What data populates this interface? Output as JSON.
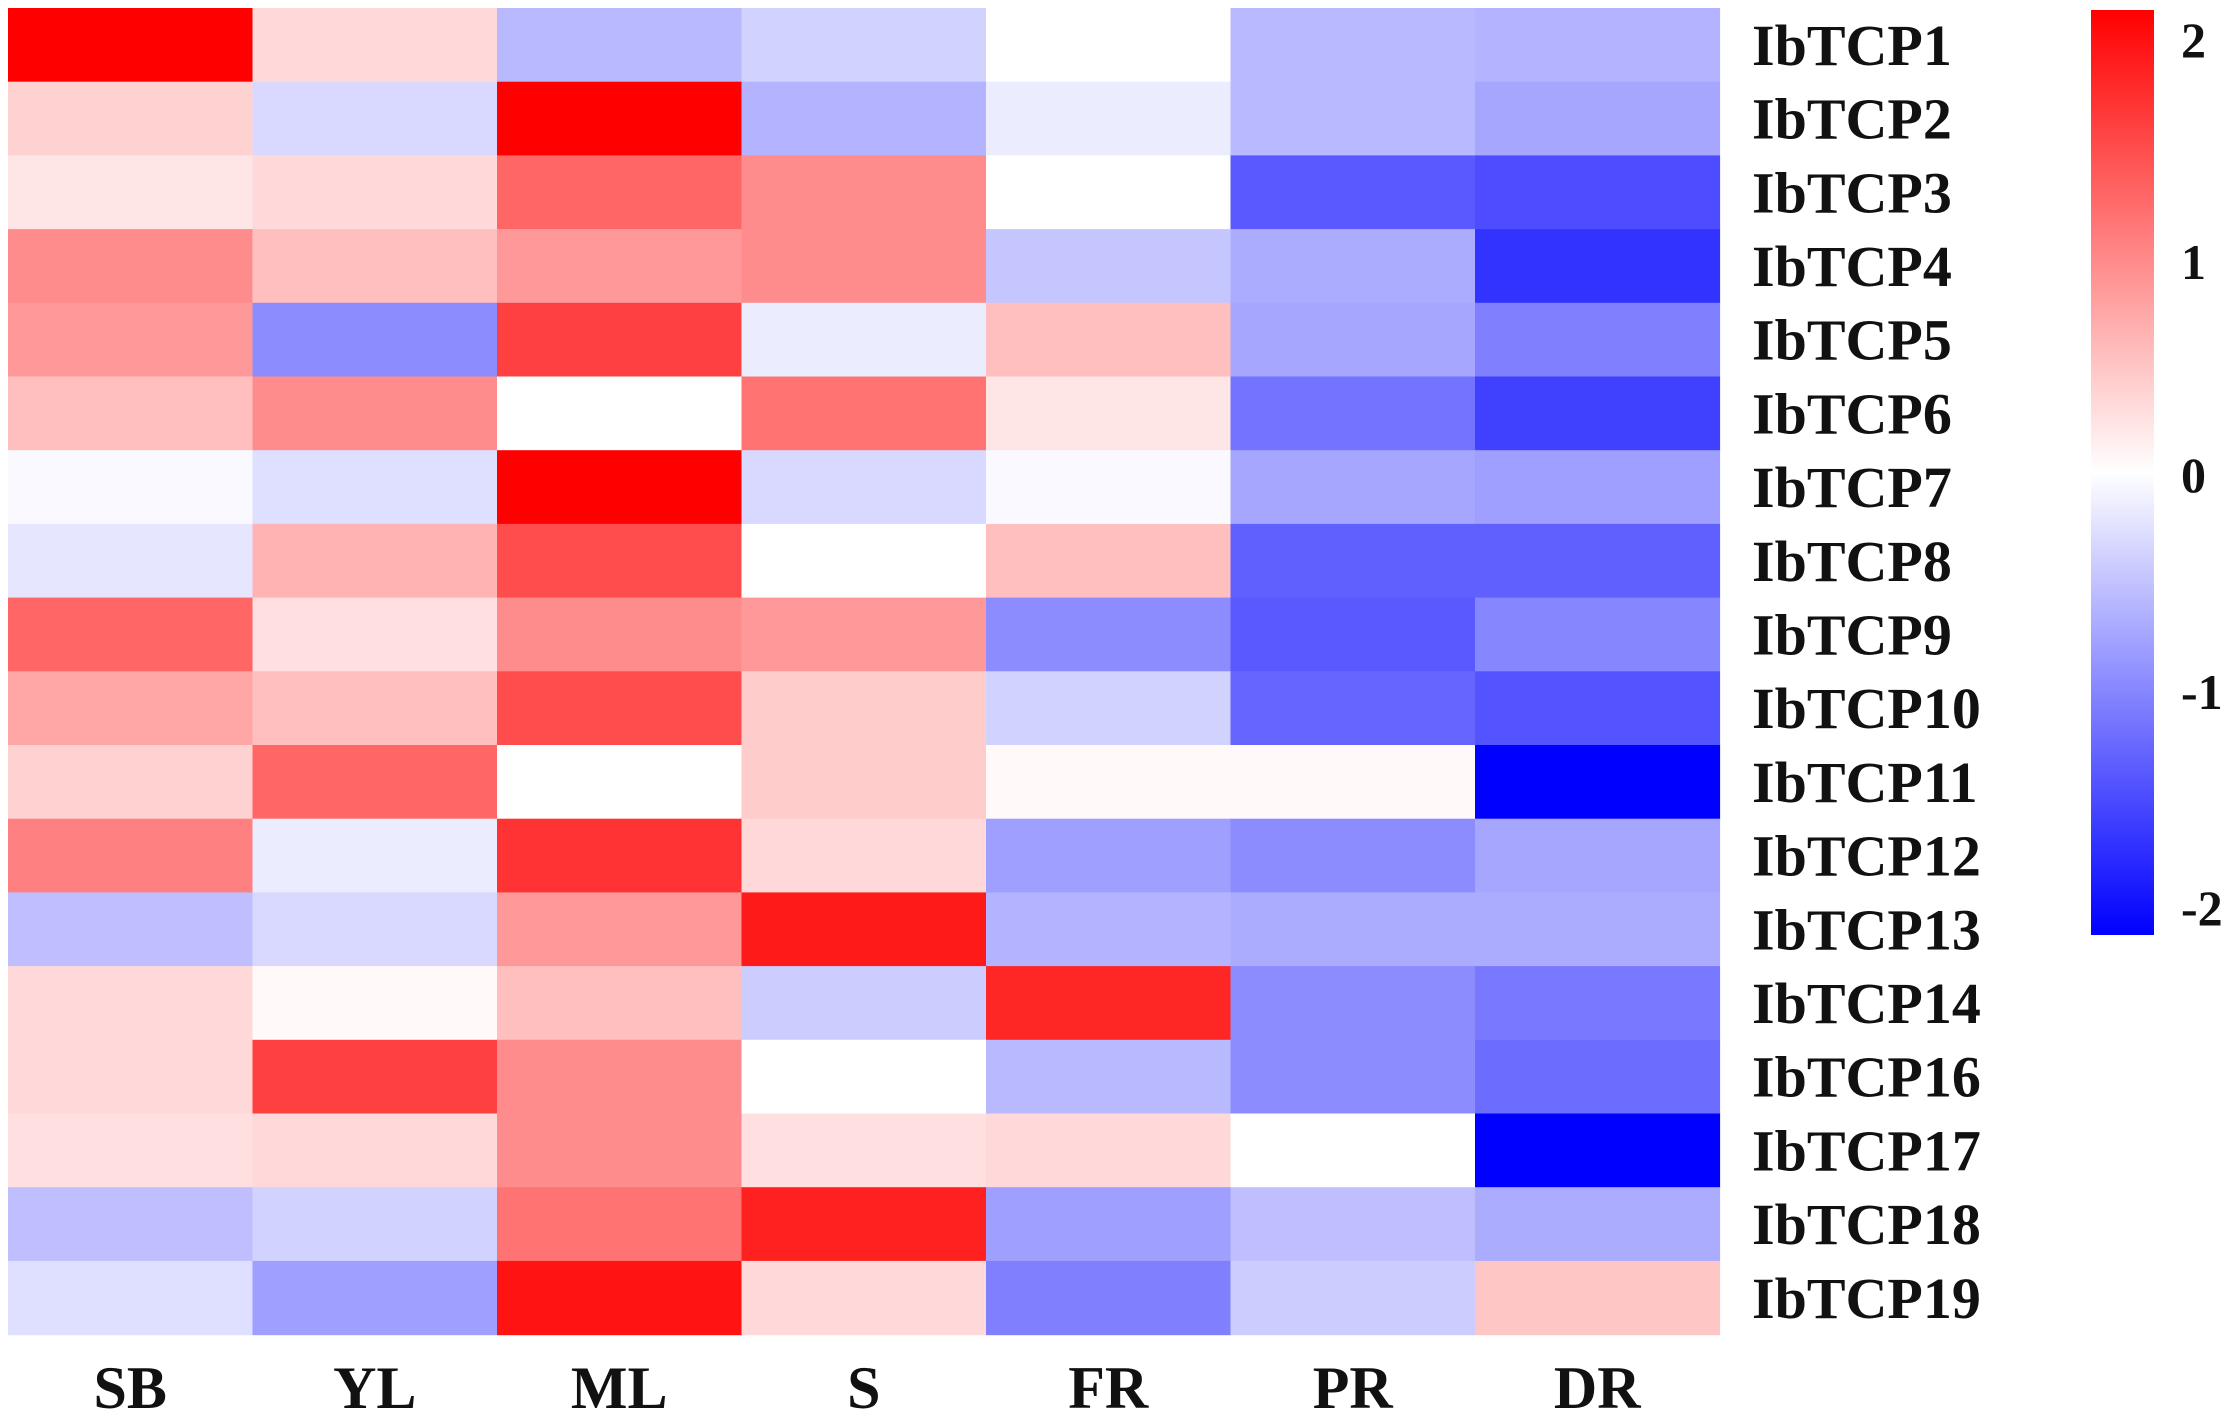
{
  "chart_data": {
    "type": "heatmap",
    "title": "",
    "xlabel": "",
    "ylabel": "",
    "columns": [
      "SB",
      "YL",
      "ML",
      "S",
      "FR",
      "PR",
      "DR"
    ],
    "rows": [
      "IbTCP1",
      "IbTCP2",
      "IbTCP3",
      "IbTCP4",
      "IbTCP5",
      "IbTCP6",
      "IbTCP7",
      "IbTCP8",
      "IbTCP9",
      "IbTCP10",
      "IbTCP11",
      "IbTCP12",
      "IbTCP13",
      "IbTCP14",
      "IbTCP16",
      "IbTCP17",
      "IbTCP18",
      "IbTCP19"
    ],
    "values": [
      [
        2.1,
        0.3,
        -0.55,
        -0.35,
        0.0,
        -0.55,
        -0.6
      ],
      [
        0.35,
        -0.3,
        2.1,
        -0.6,
        -0.15,
        -0.55,
        -0.7
      ],
      [
        0.2,
        0.3,
        1.2,
        0.9,
        0.0,
        -1.3,
        -1.4
      ],
      [
        0.9,
        0.5,
        0.8,
        0.9,
        -0.45,
        -0.65,
        -1.6
      ],
      [
        0.8,
        -0.9,
        1.5,
        -0.15,
        0.5,
        -0.7,
        -1.0
      ],
      [
        0.5,
        0.9,
        0.0,
        1.1,
        0.2,
        -1.1,
        -1.5
      ],
      [
        -0.05,
        -0.25,
        2.1,
        -0.3,
        -0.05,
        -0.7,
        -0.75
      ],
      [
        -0.2,
        0.6,
        1.4,
        0.0,
        0.5,
        -1.25,
        -1.25
      ],
      [
        1.2,
        0.25,
        0.9,
        0.8,
        -0.9,
        -1.3,
        -0.95
      ],
      [
        0.7,
        0.5,
        1.4,
        0.4,
        -0.35,
        -1.2,
        -1.35
      ],
      [
        0.35,
        1.2,
        0.0,
        0.4,
        0.05,
        0.05,
        -2.0
      ],
      [
        1.0,
        -0.15,
        1.6,
        0.3,
        -0.75,
        -0.9,
        -0.7
      ],
      [
        -0.5,
        -0.3,
        0.8,
        1.8,
        -0.6,
        -0.65,
        -0.65
      ],
      [
        0.3,
        0.05,
        0.5,
        -0.4,
        1.7,
        -0.9,
        -1.05
      ],
      [
        0.3,
        1.5,
        0.9,
        0.0,
        -0.55,
        -0.9,
        -1.15
      ],
      [
        0.25,
        0.3,
        0.9,
        0.25,
        0.3,
        0.0,
        -2.0
      ],
      [
        -0.5,
        -0.35,
        1.1,
        1.75,
        -0.75,
        -0.5,
        -0.65
      ],
      [
        -0.25,
        -0.75,
        1.85,
        0.3,
        -1.0,
        -0.4,
        0.45
      ]
    ],
    "color_scale": {
      "min": -2,
      "max": 2,
      "low_color": "#0000ff",
      "mid_color": "#ffffff",
      "high_color": "#ff0000",
      "ticks": [
        2,
        1,
        0,
        -1,
        -2
      ],
      "tick_labels": [
        "2",
        "1",
        "0",
        "-1",
        "-2"
      ]
    },
    "legend_position": "top-right"
  }
}
